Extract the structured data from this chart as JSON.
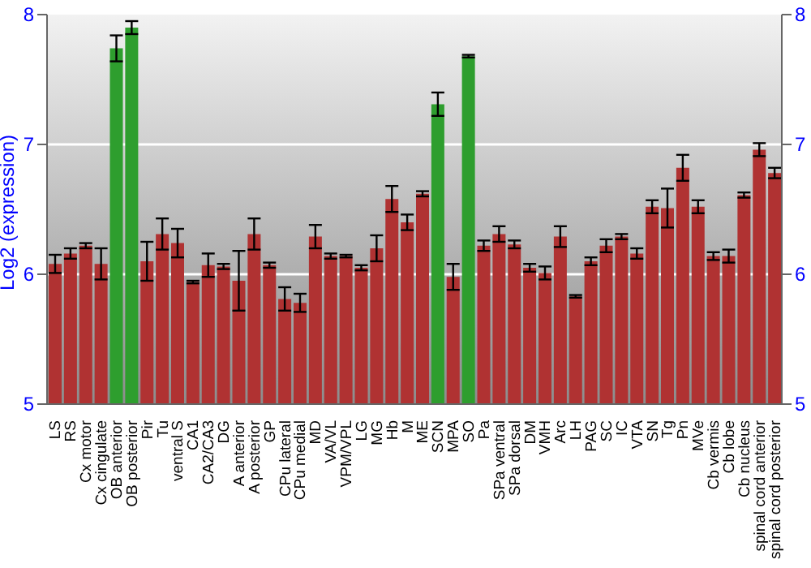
{
  "chart_data": {
    "type": "bar",
    "ylabel": "Log2 (expression)",
    "categories": [
      "LS",
      "RS",
      "Cx motor",
      "Cx cingulate",
      "OB anterior",
      "OB posterior",
      "Pir",
      "Tu",
      "ventral S",
      "CA1",
      "CA2/CA3",
      "DG",
      "A anterior",
      "A posterior",
      "GP",
      "CPu lateral",
      "CPu medial",
      "MD",
      "VA/VL",
      "VPM/VPL",
      "LG",
      "MG",
      "Hb",
      "M",
      "ME",
      "SCN",
      "MPA",
      "SO",
      "Pa",
      "SPa ventral",
      "SPa dorsal",
      "DM",
      "VMH",
      "Arc",
      "LH",
      "PAG",
      "SC",
      "IC",
      "VTA",
      "SN",
      "Tg",
      "Pn",
      "MVe",
      "Cb vermis",
      "Cb lobe",
      "Cb nucleus",
      "spinal cord anterior",
      "spinal cord posterior"
    ],
    "values": [
      6.08,
      6.16,
      6.22,
      6.08,
      7.74,
      7.9,
      6.1,
      6.31,
      6.24,
      5.94,
      6.07,
      6.06,
      5.95,
      6.31,
      6.07,
      5.81,
      5.78,
      6.29,
      6.14,
      6.14,
      6.05,
      6.2,
      6.58,
      6.4,
      6.62,
      7.31,
      5.98,
      7.68,
      6.22,
      6.31,
      6.23,
      6.05,
      6.01,
      6.29,
      5.83,
      6.1,
      6.22,
      6.29,
      6.16,
      6.52,
      6.51,
      6.82,
      6.52,
      6.14,
      6.14,
      6.61,
      6.96,
      6.78
    ],
    "errors": [
      0.07,
      0.04,
      0.02,
      0.12,
      0.1,
      0.05,
      0.15,
      0.12,
      0.11,
      0.01,
      0.09,
      0.02,
      0.23,
      0.12,
      0.02,
      0.09,
      0.07,
      0.09,
      0.02,
      0.01,
      0.02,
      0.1,
      0.1,
      0.06,
      0.02,
      0.09,
      0.1,
      0.01,
      0.04,
      0.06,
      0.03,
      0.03,
      0.05,
      0.08,
      0.01,
      0.03,
      0.05,
      0.02,
      0.04,
      0.05,
      0.15,
      0.1,
      0.05,
      0.03,
      0.05,
      0.02,
      0.05,
      0.04
    ],
    "colors": [
      "#b03232",
      "#b03232",
      "#b03232",
      "#b03232",
      "#2e9e2e",
      "#2e9e2e",
      "#b03232",
      "#b03232",
      "#b03232",
      "#b03232",
      "#b03232",
      "#b03232",
      "#b03232",
      "#b03232",
      "#b03232",
      "#b03232",
      "#b03232",
      "#b03232",
      "#b03232",
      "#b03232",
      "#b03232",
      "#b03232",
      "#b03232",
      "#b03232",
      "#b03232",
      "#2e9e2e",
      "#b03232",
      "#2e9e2e",
      "#b03232",
      "#b03232",
      "#b03232",
      "#b03232",
      "#b03232",
      "#b03232",
      "#b03232",
      "#b03232",
      "#b03232",
      "#b03232",
      "#b03232",
      "#b03232",
      "#b03232",
      "#b03232",
      "#b03232",
      "#b03232",
      "#b03232",
      "#b03232",
      "#b03232",
      "#b03232"
    ],
    "ylim": [
      5,
      8
    ],
    "yticks": [
      5,
      6,
      7,
      8
    ],
    "y2lim": [
      5,
      8
    ],
    "y2ticks": [
      5,
      6,
      7,
      8
    ],
    "grid": "y"
  }
}
